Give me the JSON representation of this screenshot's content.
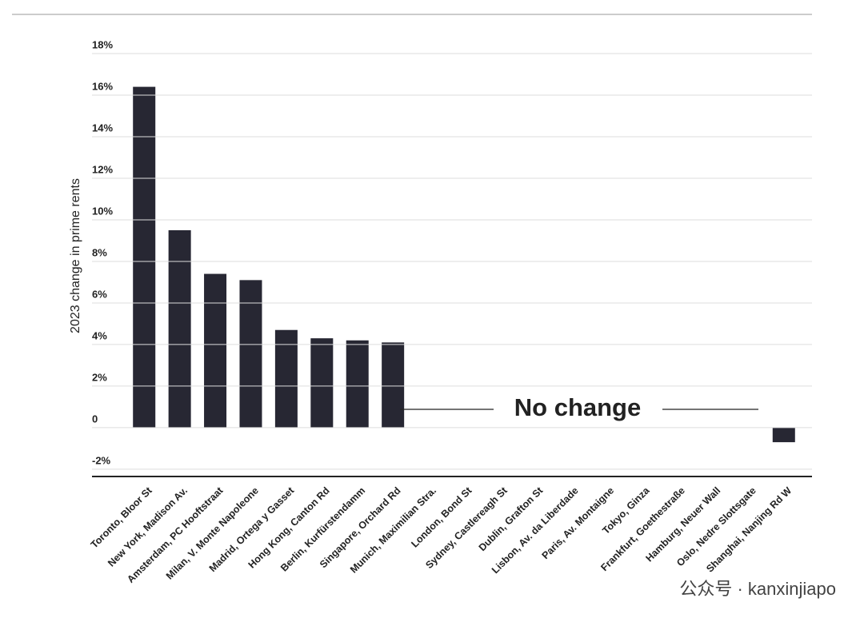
{
  "chart_data": {
    "type": "bar",
    "y_label": "2023 change in prime rents",
    "annotation": "No change",
    "watermark": "公众号 · kanxinjiapo",
    "categories": [
      "Toronto, Bloor St",
      "New York, Madison Av.",
      "Amsterdam, PC Hooftstraat",
      "Milan, V. Monte Napoleone",
      "Madrid, Ortega y Gasset",
      "Hong Kong, Canton Rd",
      "Berlin, Kurfürstendamm",
      "Singapore, Orchard Rd",
      "Munich, Maximilian Stra.",
      "London, Bond St",
      "Sydney, Castlereagh St",
      "Dublin, Grafton St",
      "Lisbon, Av. da Liberdade",
      "Paris, Av. Montaigne",
      "Tokyo, Ginza",
      "Frankfurt, Goethestraße",
      "Hamburg, Neuer Wall",
      "Oslo, Nedre Slottsgate",
      "Shanghai, Nanjing Rd W"
    ],
    "values": [
      16.4,
      9.5,
      7.4,
      7.1,
      4.7,
      4.3,
      4.2,
      4.1,
      0,
      0,
      0,
      0,
      0,
      0,
      0,
      0,
      0,
      0,
      -0.7
    ],
    "color": "#272733",
    "ylim": [
      -2.35,
      18
    ],
    "yticks": [
      {
        "value": 18,
        "label": "18%"
      },
      {
        "value": 16,
        "label": "16%"
      },
      {
        "value": 14,
        "label": "14%"
      },
      {
        "value": 12,
        "label": "12%"
      },
      {
        "value": 10,
        "label": "10%"
      },
      {
        "value": 8,
        "label": "8%"
      },
      {
        "value": 6,
        "label": "6%"
      },
      {
        "value": 4,
        "label": "4%"
      },
      {
        "value": 2,
        "label": "2%"
      },
      0,
      {
        "value": -2,
        "label": "-2%"
      }
    ],
    "grid": true
  }
}
